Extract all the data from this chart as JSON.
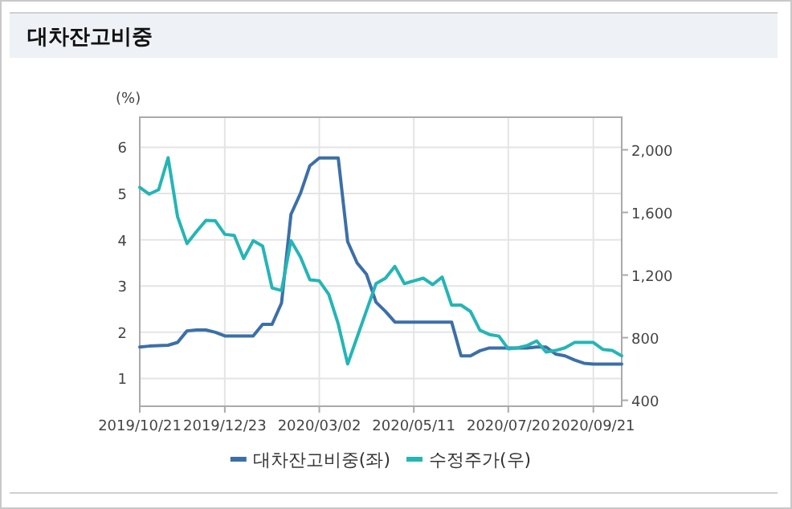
{
  "chart_data": {
    "type": "line",
    "title": "대차잔고비중",
    "ylabel": "(%)",
    "x": [
      "2019-10-21",
      "2019-10-28",
      "2019-11-04",
      "2019-11-11",
      "2019-11-18",
      "2019-11-25",
      "2019-12-02",
      "2019-12-09",
      "2019-12-16",
      "2019-12-23",
      "2019-12-30",
      "2020-01-06",
      "2020-01-13",
      "2020-01-20",
      "2020-01-27",
      "2020-02-03",
      "2020-02-10",
      "2020-02-17",
      "2020-02-24",
      "2020-03-02",
      "2020-03-09",
      "2020-03-16",
      "2020-03-23",
      "2020-03-30",
      "2020-04-06",
      "2020-04-13",
      "2020-04-20",
      "2020-04-27",
      "2020-05-04",
      "2020-05-11",
      "2020-05-18",
      "2020-05-25",
      "2020-06-01",
      "2020-06-08",
      "2020-06-15",
      "2020-06-22",
      "2020-06-29",
      "2020-07-06",
      "2020-07-13",
      "2020-07-20",
      "2020-07-27",
      "2020-08-03",
      "2020-08-10",
      "2020-08-17",
      "2020-08-24",
      "2020-08-31",
      "2020-09-07",
      "2020-09-14",
      "2020-09-21",
      "2020-09-28",
      "2020-10-05",
      "2020-10-12"
    ],
    "series": [
      {
        "name": "대차잔고비중(좌)",
        "color": "#3c6fa8",
        "values": [
          1.68,
          1.7,
          1.71,
          1.72,
          1.78,
          2.03,
          2.05,
          2.05,
          2.0,
          1.92,
          1.92,
          1.92,
          1.92,
          2.17,
          2.17,
          2.63,
          4.55,
          5.0,
          5.6,
          5.77,
          5.77,
          5.77,
          3.96,
          3.5,
          3.25,
          2.65,
          2.45,
          2.22,
          2.22,
          2.22,
          2.22,
          2.22,
          2.22,
          2.22,
          1.49,
          1.49,
          1.6,
          1.66,
          1.66,
          1.66,
          1.66,
          1.66,
          1.68,
          1.68,
          1.53,
          1.49,
          1.4,
          1.33,
          1.31,
          1.31,
          1.31,
          1.31
        ]
      },
      {
        "name": "수정주가(우)",
        "color": "#25b5b5",
        "axis": "y2",
        "values": [
          1760,
          1717,
          1745,
          1949,
          1573,
          1401,
          1477,
          1549,
          1546,
          1460,
          1453,
          1306,
          1419,
          1385,
          1118,
          1101,
          1419,
          1316,
          1170,
          1163,
          1077,
          888,
          632,
          803,
          974,
          1145,
          1180,
          1255,
          1145,
          1163,
          1180,
          1139,
          1187,
          1008,
          1008,
          967,
          847,
          820,
          810,
          728,
          735,
          750,
          779,
          708,
          718,
          735,
          769,
          769,
          769,
          725,
          718,
          684
        ]
      }
    ],
    "xlim": [
      "2019-10-21",
      "2020-10-12"
    ],
    "xticks": [
      {
        "value": "2019-10-21",
        "label": "2019/10/21"
      },
      {
        "value": "2019-12-23",
        "label": "2019/12/23"
      },
      {
        "value": "2020-03-02",
        "label": "2020/03/02"
      },
      {
        "value": "2020-05-11",
        "label": "2020/05/11"
      },
      {
        "value": "2020-07-20",
        "label": "2020/07/20"
      },
      {
        "value": "2020-09-21",
        "label": "2020/09/21"
      }
    ],
    "ylim": [
      0.4,
      6.65
    ],
    "yticks": [
      1,
      2,
      3,
      4,
      5,
      6
    ],
    "y2lim": [
      362,
      2208
    ],
    "y2ticks": [
      400,
      800,
      {
        "value": 1200,
        "label": "1,200"
      },
      {
        "value": 1600,
        "label": "1,600"
      },
      {
        "value": 2000,
        "label": "2,000"
      }
    ],
    "grid": true,
    "legend": "bottom",
    "marker": "none",
    "line_style": "solid"
  }
}
